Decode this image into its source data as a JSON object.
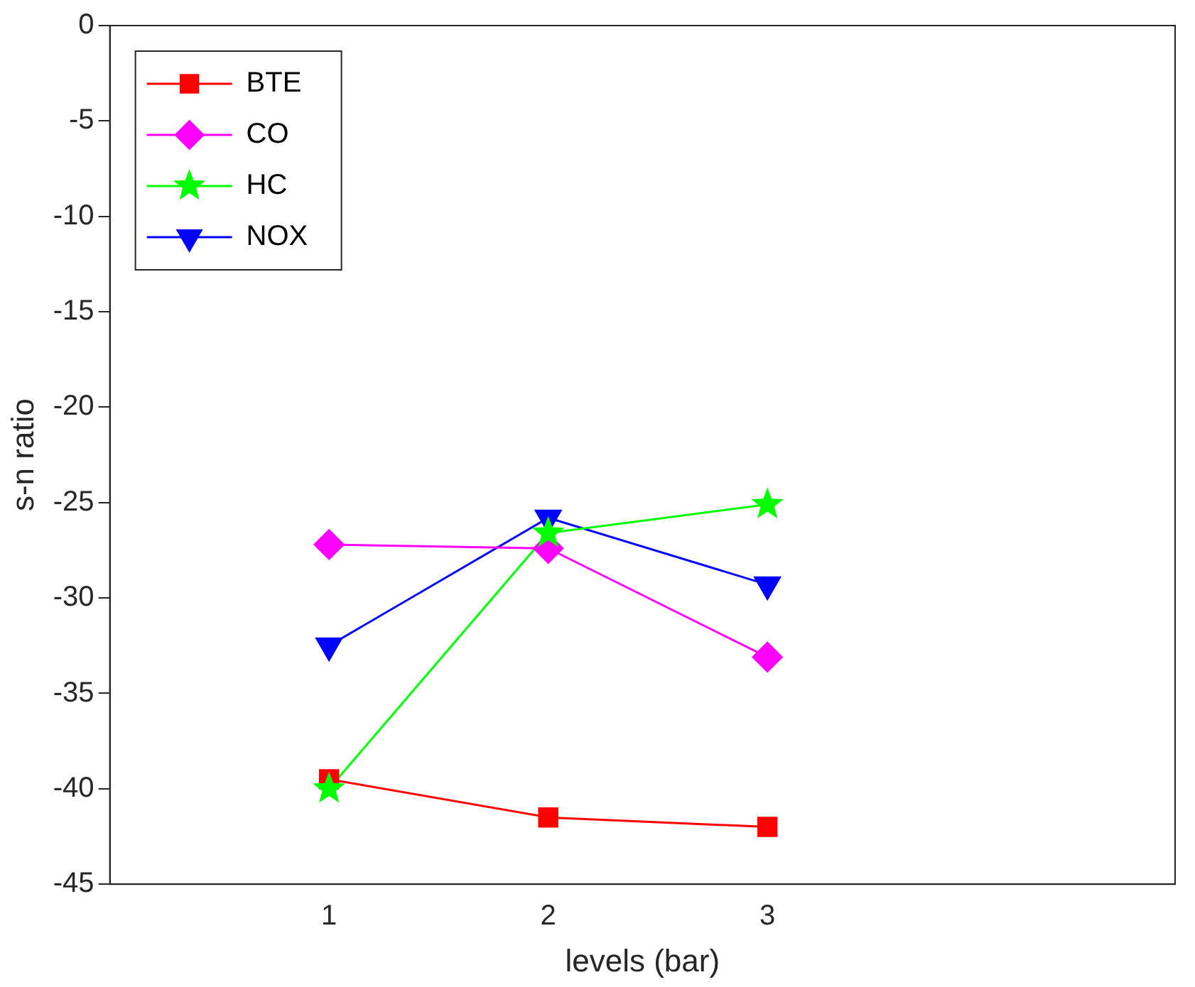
{
  "chart_data": {
    "type": "line",
    "xlabel": "levels (bar)",
    "ylabel": "s-n ratio",
    "x": [
      1,
      2,
      3
    ],
    "xlim": [
      0,
      4.86
    ],
    "xticks": [
      1,
      2,
      3
    ],
    "ylim": [
      -45,
      0
    ],
    "yticks": [
      -45,
      -40,
      -35,
      -30,
      -25,
      -20,
      -15,
      -10,
      -5,
      0
    ],
    "grid": false,
    "legend": "top left",
    "series": [
      {
        "name": "BTE",
        "color": "#ff0000",
        "marker": "square",
        "values": [
          -39.5,
          -41.5,
          -42.0
        ]
      },
      {
        "name": "CO",
        "color": "#ff00ff",
        "marker": "diamond",
        "values": [
          -27.2,
          -27.4,
          -33.1
        ]
      },
      {
        "name": "HC",
        "color": "#00ff00",
        "marker": "star",
        "values": [
          -40.0,
          -26.6,
          -25.1
        ]
      },
      {
        "name": "NOX",
        "color": "#0000ff",
        "marker": "triangle-down",
        "values": [
          -32.5,
          -25.8,
          -29.3
        ]
      }
    ]
  }
}
